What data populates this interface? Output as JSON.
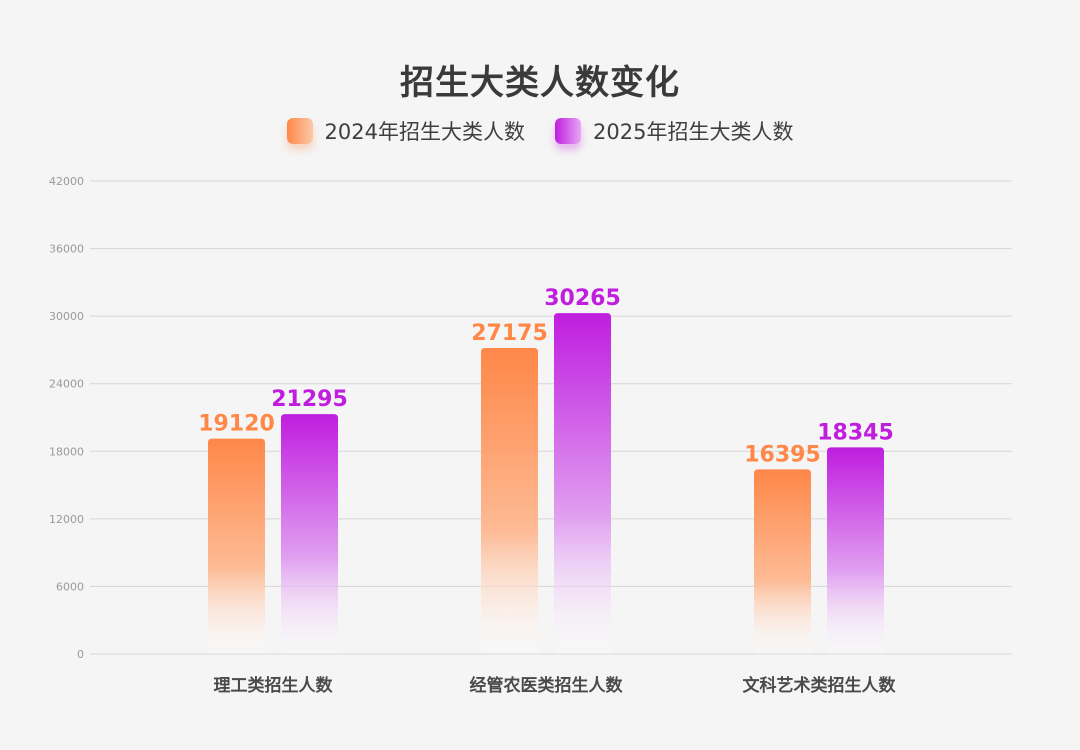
{
  "chart_data": {
    "type": "bar",
    "title": "招生大类人数变化",
    "categories": [
      "理工类招生人数",
      "经管农医类招生人数",
      "文科艺术类招生人数"
    ],
    "series": [
      {
        "name": "2024年招生大类人数",
        "values": [
          19120,
          27175,
          16395
        ],
        "color": "#ff8748"
      },
      {
        "name": "2025年招生大类人数",
        "values": [
          21295,
          30265,
          18345
        ],
        "color": "#c01ddf"
      }
    ],
    "ylim": [
      0,
      42000
    ],
    "yticks": [
      0,
      6000,
      12000,
      18000,
      24000,
      30000,
      36000,
      42000
    ],
    "grid": true,
    "legend": "top-center",
    "data_labels": true
  }
}
